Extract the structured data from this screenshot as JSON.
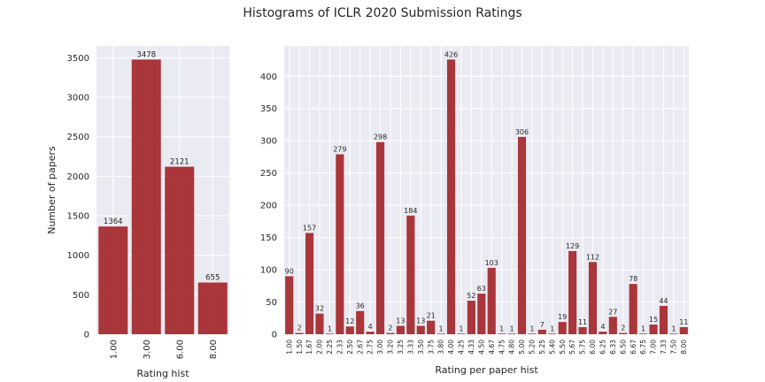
{
  "figure": {
    "title": "Histograms of ICLR 2020 Submission Ratings"
  },
  "colors": {
    "bar": "#a3262a",
    "plot_background": "#eaeaf2",
    "grid": "#ffffff",
    "text": "#262626"
  },
  "chart_data": [
    {
      "type": "bar",
      "title": "",
      "xlabel": "Rating hist",
      "ylabel": "Number of papers",
      "categories": [
        "1.00",
        "3.00",
        "6.00",
        "8.00"
      ],
      "values": [
        1364,
        3478,
        2121,
        655
      ],
      "ylim": [
        0,
        3650
      ],
      "yticks": [
        0,
        500,
        1000,
        1500,
        2000,
        2500,
        3000,
        3500
      ],
      "grid": true,
      "legend": "none"
    },
    {
      "type": "bar",
      "title": "",
      "xlabel": "Rating per paper hist",
      "ylabel": "",
      "categories": [
        "1.00",
        "1.50",
        "1.67",
        "2.00",
        "2.25",
        "2.33",
        "2.50",
        "2.67",
        "2.75",
        "3.00",
        "3.20",
        "3.25",
        "3.33",
        "3.50",
        "3.75",
        "3.80",
        "4.00",
        "4.25",
        "4.33",
        "4.50",
        "4.67",
        "4.75",
        "4.80",
        "5.00",
        "5.20",
        "5.25",
        "5.40",
        "5.50",
        "5.67",
        "5.75",
        "6.00",
        "6.25",
        "6.33",
        "6.50",
        "6.67",
        "6.75",
        "7.00",
        "7.33",
        "7.50",
        "8.00"
      ],
      "values": [
        90,
        2,
        157,
        32,
        1,
        279,
        12,
        36,
        4,
        298,
        2,
        13,
        184,
        13,
        21,
        1,
        426,
        1,
        52,
        63,
        103,
        1,
        1,
        306,
        1,
        7,
        1,
        19,
        129,
        11,
        112,
        4,
        27,
        2,
        78,
        1,
        15,
        44,
        1,
        11
      ],
      "ylim": [
        0,
        447
      ],
      "yticks": [
        0,
        50,
        100,
        150,
        200,
        250,
        300,
        350,
        400
      ],
      "grid": true,
      "legend": "none"
    }
  ]
}
